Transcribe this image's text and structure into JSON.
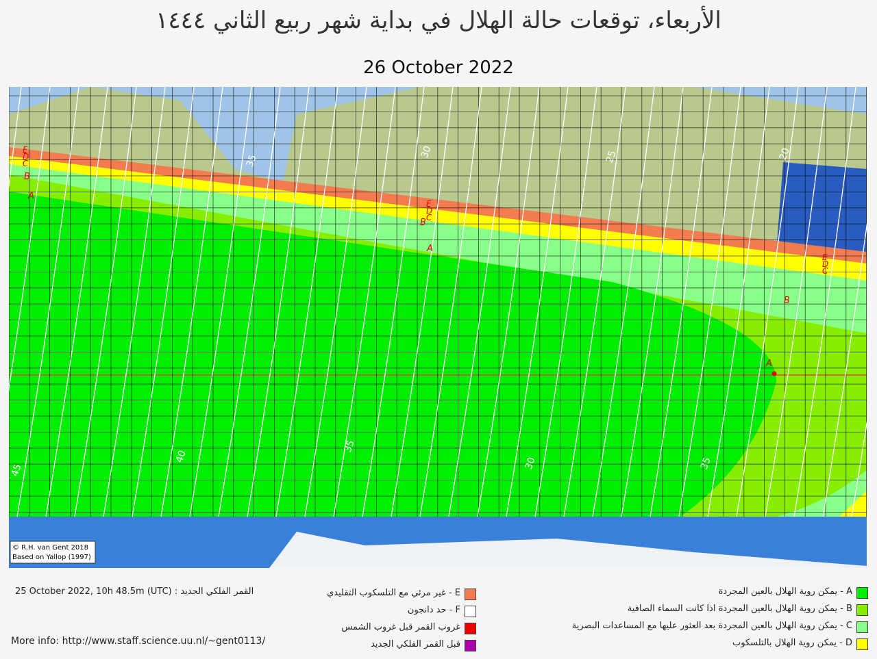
{
  "header": {
    "title": "الأربعاء، توقعات حالة الهلال في بداية شهر ربيع الثاني ١٤٤٤",
    "date": "26 October 2022"
  },
  "map": {
    "credits": [
      "© R.H. van Gent 2018",
      "Based on Yallop (1997)"
    ],
    "zone_labels": [
      "E",
      "D",
      "C",
      "B",
      "A"
    ],
    "contour_labels_top": [
      "35",
      "30",
      "25",
      "20"
    ],
    "contour_labels_bottom": [
      "45",
      "40",
      "35",
      "30",
      "35"
    ]
  },
  "legend": {
    "left": [
      {
        "label": "E - غير مرئي مع التلسكوب التقليدي",
        "color": "#f27c50"
      },
      {
        "label": "F - حد دانجون",
        "color": "#ffffff"
      },
      {
        "label": "غروب القمر قبل غروب الشمس",
        "color": "#ee0000"
      },
      {
        "label": "قبل القمر  الفلكي الجديد",
        "color": "#aa00aa"
      }
    ],
    "right": [
      {
        "label": "A - يمكن روية الهلال بالعين المجردة",
        "color": "#00ee00"
      },
      {
        "label": "B - يمكن روية الهلال بالعين المجردة اذا كانت السماء الصافية",
        "color": "#88ee00"
      },
      {
        "label": "C - يمكن روية الهلال بالعين المجردة بعد العثور عليها مع المساعدات البصرية",
        "color": "#88ff88"
      },
      {
        "label": "D - يمكن روية الهلال بالتلسكوب",
        "color": "#ffff00"
      }
    ]
  },
  "footer": {
    "new_moon": "25 October 2022, 10h 48.5m (UTC) : القمر الفلكي الجديد",
    "more_info": "More info: http://www.staff.science.uu.nl/~gent0113/"
  }
}
